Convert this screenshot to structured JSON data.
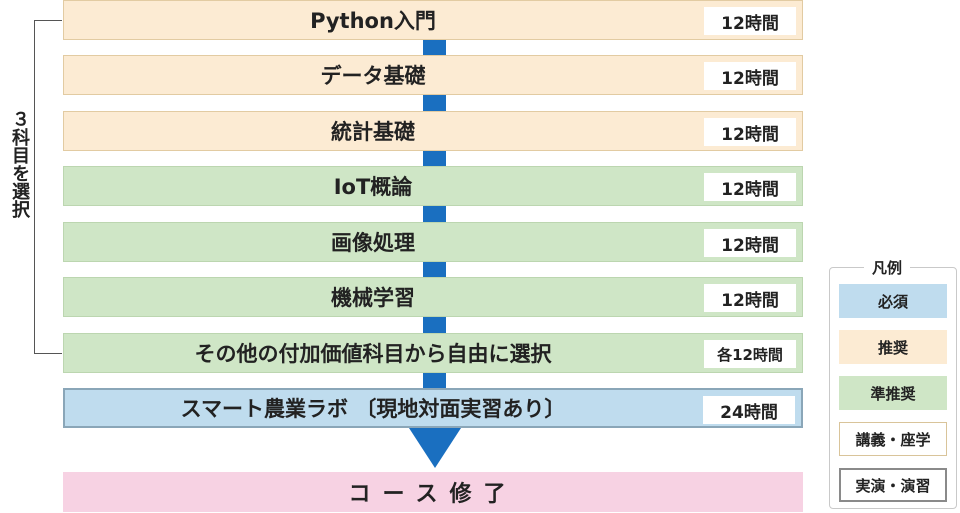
{
  "side_label": "３科目を選択",
  "courses": [
    {
      "title": "Python入門",
      "hours": "12時間"
    },
    {
      "title": "データ基礎",
      "hours": "12時間"
    },
    {
      "title": "統計基礎",
      "hours": "12時間"
    },
    {
      "title": "IoT概論",
      "hours": "12時間"
    },
    {
      "title": "画像処理",
      "hours": "12時間"
    },
    {
      "title": "機械学習",
      "hours": "12時間"
    },
    {
      "title": "その他の付加価値科目から自由に選択",
      "hours": "各12時間"
    },
    {
      "title": "スマート農業ラボ 〔現地対面実習あり〕",
      "hours": "24時間"
    }
  ],
  "completion": "コース修了",
  "legend": {
    "title": "凡例",
    "items": [
      "必須",
      "推奨",
      "準推奨",
      "講義・座学",
      "実演・演習"
    ]
  },
  "colors": {
    "required": "#bfdcee",
    "recommended": "#fcebd3",
    "semi_recommended": "#cfe6c6",
    "completion": "#f7d2e3",
    "arrow": "#1a6fc0"
  }
}
